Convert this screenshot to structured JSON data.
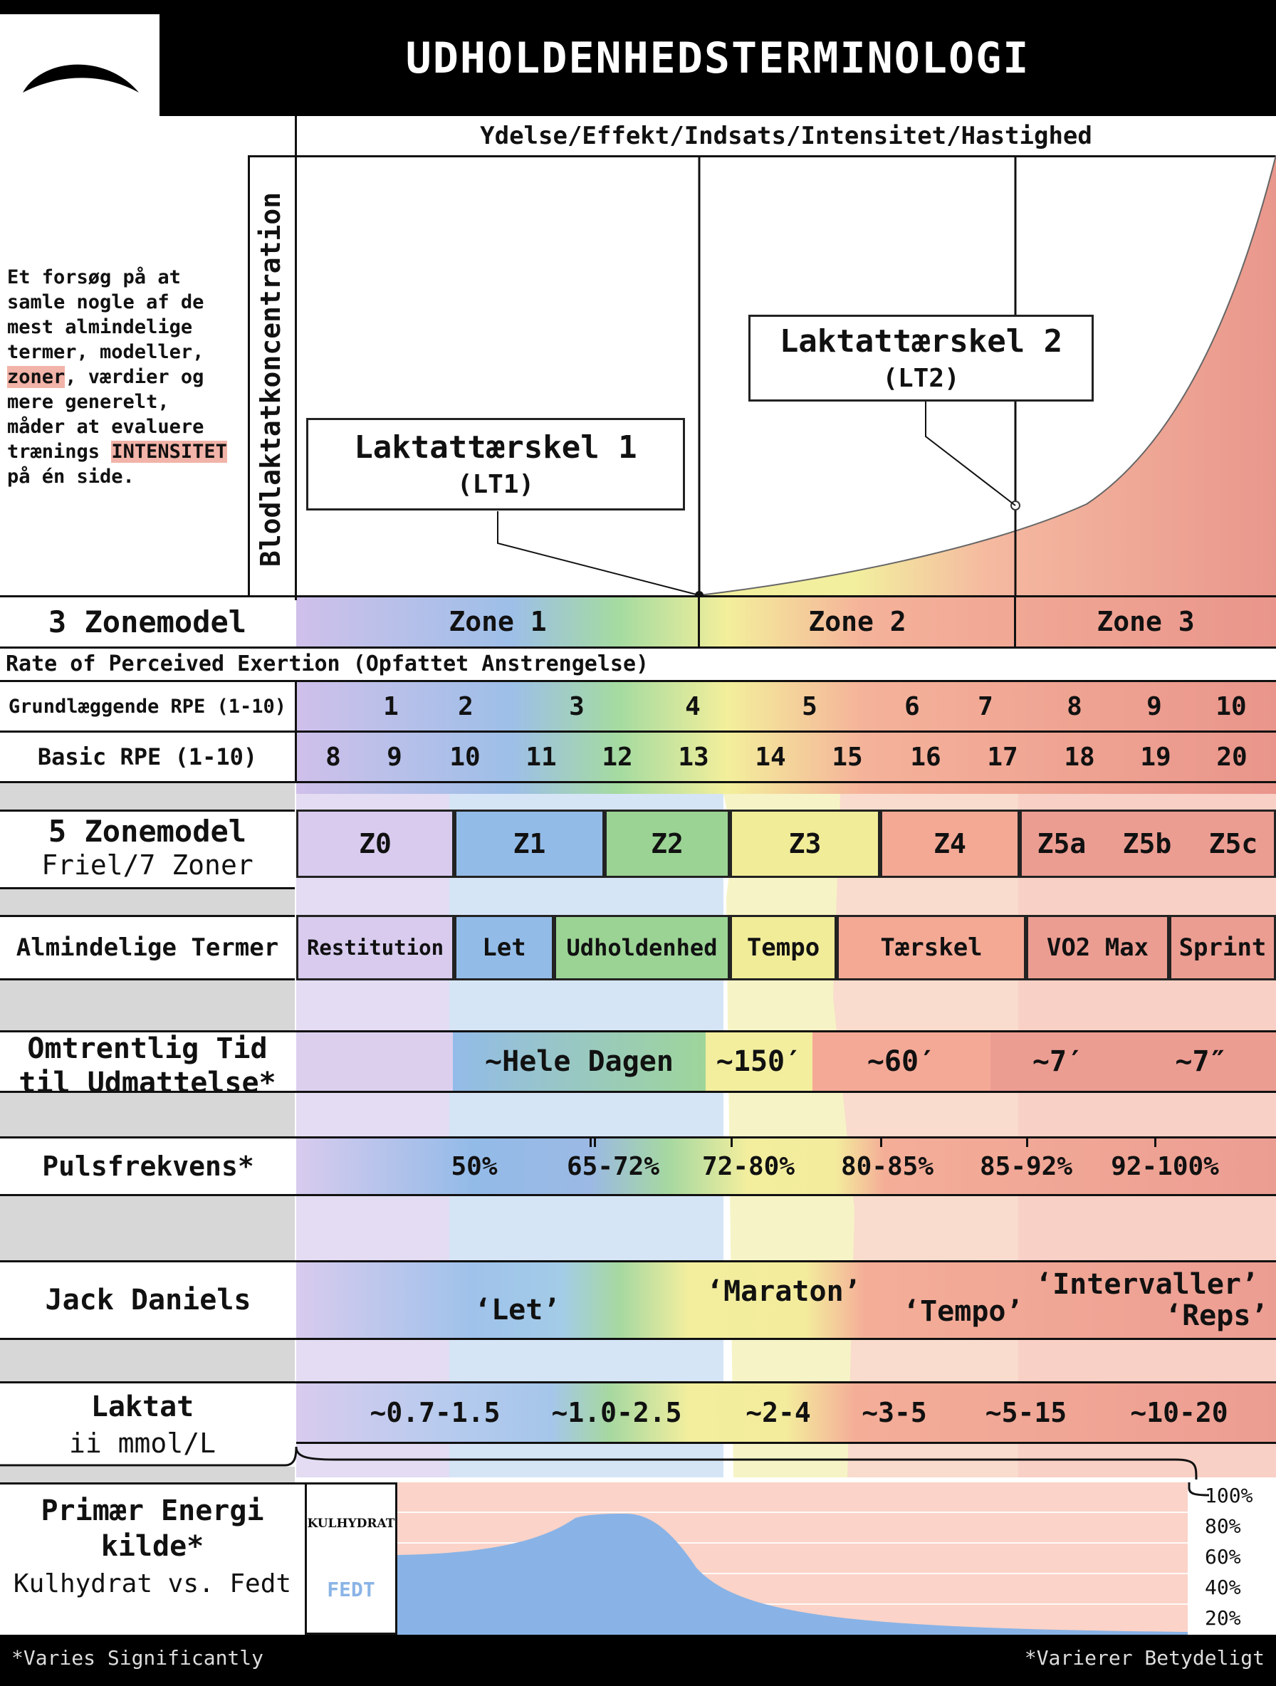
{
  "title": "UDHOLDENHEDSTERMINOLOGI",
  "logo": "swoosh-logo",
  "header_axis": "Ydelse/Effekt/Indsats/Intensitet/Hastighed",
  "y_axis": "Blodlaktatkoncentration",
  "intro": {
    "l1": "Et forsøg på at",
    "l2": "samle nogle af de",
    "l3": "mest almindelige",
    "l4": "termer, modeller,",
    "l5_hl": "zoner",
    "l5_rest": ", værdier og",
    "l6": "mere generelt,",
    "l7": "måder at evaluere",
    "l8_a": "trænings ",
    "l8_hl": "INTENSITET",
    "l9": "på én side."
  },
  "lt1": {
    "name": "Laktattærskel 1",
    "abbr": "(LT1)"
  },
  "lt2": {
    "name": "Laktattærskel 2",
    "abbr": "(LT2)"
  },
  "zone3": {
    "label": "3 Zonemodel",
    "zones": [
      "Zone 1",
      "Zone 2",
      "Zone 3"
    ]
  },
  "rpe_header": "Rate of Perceived Exertion (Opfattet Anstrengelse)",
  "rpe_basic": {
    "label": "Grundlæggende RPE (1-10)",
    "values": [
      "1",
      "2",
      "3",
      "4",
      "5",
      "6",
      "7",
      "8",
      "9",
      "10"
    ]
  },
  "rpe_borg": {
    "label": "Basic RPE (1-10)",
    "values": [
      "8",
      "9",
      "10",
      "11",
      "12",
      "13",
      "14",
      "15",
      "16",
      "17",
      "18",
      "19",
      "20"
    ]
  },
  "zone5": {
    "label": "5 Zonemodel",
    "sub": "Friel/7 Zoner",
    "zones": [
      "Z0",
      "Z1",
      "Z2",
      "Z3",
      "Z4",
      "Z5a",
      "Z5b",
      "Z5c"
    ]
  },
  "terms": {
    "label": "Almindelige Termer",
    "values": [
      "Restitution",
      "Let",
      "Udholdenhed",
      "Tempo",
      "Tærskel",
      "VO2 Max",
      "Sprint"
    ]
  },
  "ttx": {
    "label1": "Omtrentlig Tid",
    "label2": "til Udmattelse*",
    "values": [
      "~Hele Dagen",
      "~150′",
      "~60′",
      "~7′",
      "~7″"
    ]
  },
  "hr": {
    "label": "Pulsfrekvens*",
    "values": [
      "50%",
      "65-72%",
      "72-80%",
      "80-85%",
      "85-92%",
      "92-100%"
    ]
  },
  "daniels": {
    "label": "Jack Daniels",
    "values": [
      "‘Let’",
      "‘Maraton’",
      "‘Tempo’",
      "‘Intervaller’",
      "‘Reps’"
    ]
  },
  "lactate": {
    "label": "Laktat",
    "sub": "ii mmol/L",
    "values": [
      "~0.7-1.5",
      "~1.0-2.5",
      "~2-4",
      "~3-5",
      "~5-15",
      "~10-20"
    ]
  },
  "energy": {
    "label1": "Primær Energi",
    "label2": "kilde*",
    "label3": "Kulhydrat vs. Fedt",
    "carb": "KULHYDRAT",
    "fat": "FEDT",
    "pcts": [
      "100%",
      "80%",
      "60%",
      "40%",
      "20%"
    ]
  },
  "footer": {
    "left": "*Varies Significantly",
    "right": "*Varierer Betydeligt"
  },
  "colors": {
    "purple": "#cdbde6",
    "blue": "#8eb6e4",
    "green": "#9bd394",
    "yellow": "#f0ec95",
    "salmon": "#f4a995",
    "red": "#e8948a",
    "highlight": "#f2b3a8"
  }
}
